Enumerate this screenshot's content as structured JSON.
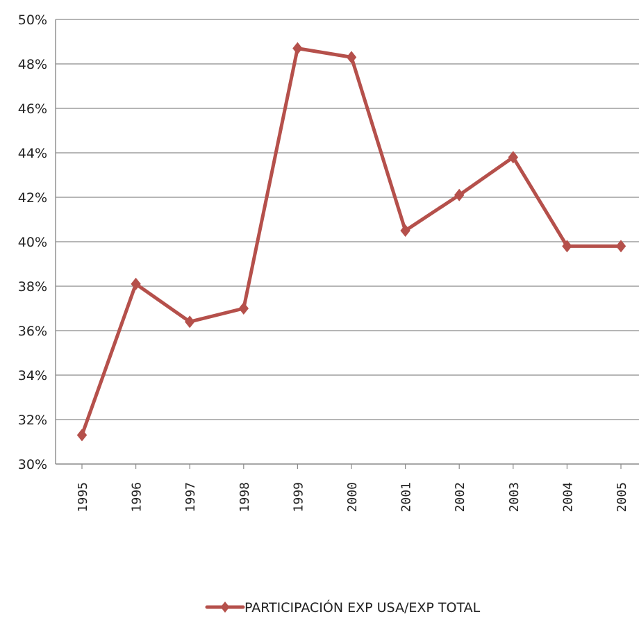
{
  "chart_data": {
    "type": "line",
    "title": "",
    "xlabel": "",
    "ylabel": "",
    "x": [
      "1995",
      "1996",
      "1997",
      "1998",
      "1999",
      "2000",
      "2001",
      "2002",
      "2003",
      "2004",
      "2005"
    ],
    "series": [
      {
        "name": "PARTICIPACIÓN EXP USA/EXP TOTAL",
        "values": [
          31.3,
          38.1,
          36.4,
          37.0,
          48.7,
          48.3,
          40.5,
          42.1,
          43.8,
          39.8,
          39.8
        ],
        "color": "#b5504b",
        "marker": "diamond"
      }
    ],
    "ylim": [
      30,
      50
    ],
    "y_ticks": [
      "30%",
      "32%",
      "34%",
      "36%",
      "38%",
      "40%",
      "42%",
      "44%",
      "46%",
      "48%",
      "50%"
    ],
    "grid": true,
    "legend_position": "bottom"
  }
}
